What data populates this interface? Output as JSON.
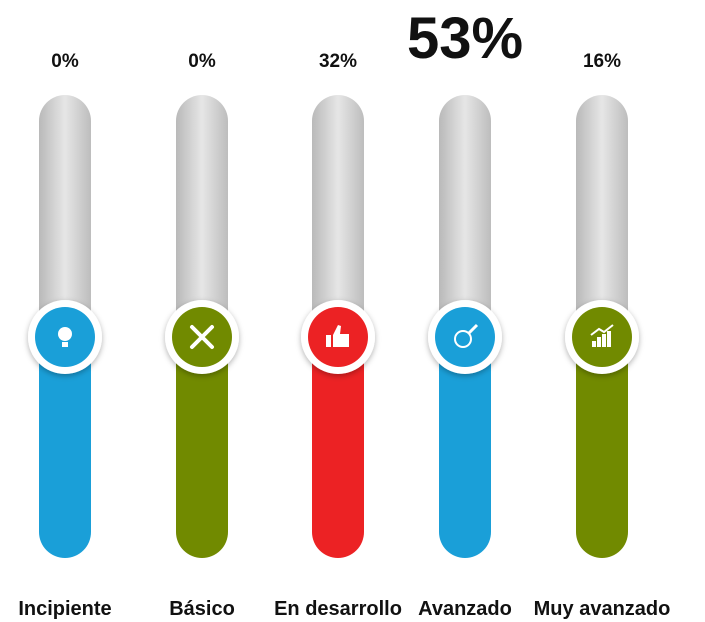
{
  "items": [
    {
      "percent": "0%",
      "label": "Incipiente",
      "color": "#1a9fd8",
      "icon": "bulb"
    },
    {
      "percent": "0%",
      "label": "Básico",
      "color": "#718a00",
      "icon": "tools"
    },
    {
      "percent": "32%",
      "label": "En desarrollo",
      "color": "#ec2224",
      "icon": "thumb"
    },
    {
      "percent": "53%",
      "label": "Avanzado",
      "color": "#1a9fd8",
      "icon": "pen",
      "emphasized": true
    },
    {
      "percent": "16%",
      "label": "Muy avanzado",
      "color": "#718a00",
      "icon": "growth"
    }
  ]
}
